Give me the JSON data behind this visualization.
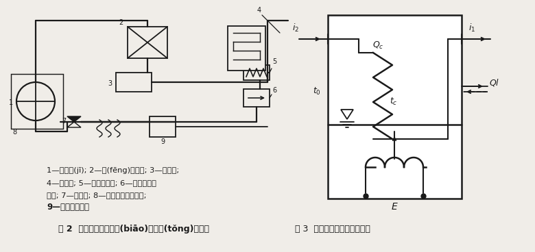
{
  "bg_color": "#f0ede8",
  "fig2_title": "圖 2  渦輪流量變送器標(biāo)定系統(tǒng)原理圖",
  "fig3_title": "圖 3  二次制冷劑量熱計示意圖",
  "caption_line1": "1—壓縮機(jī); 2—風(fēng)冷凝器; 3—儲液器;",
  "caption_line2": "4—過冷器; 5—干燥過濾器; 6—渦輪流量變",
  "caption_line3": "送器; 7—膨脹閥; 8—二次制冷劑量熱計;",
  "caption_line4": "9—含油測定裝置",
  "lw": 1.3,
  "color": "#1a1a1a"
}
